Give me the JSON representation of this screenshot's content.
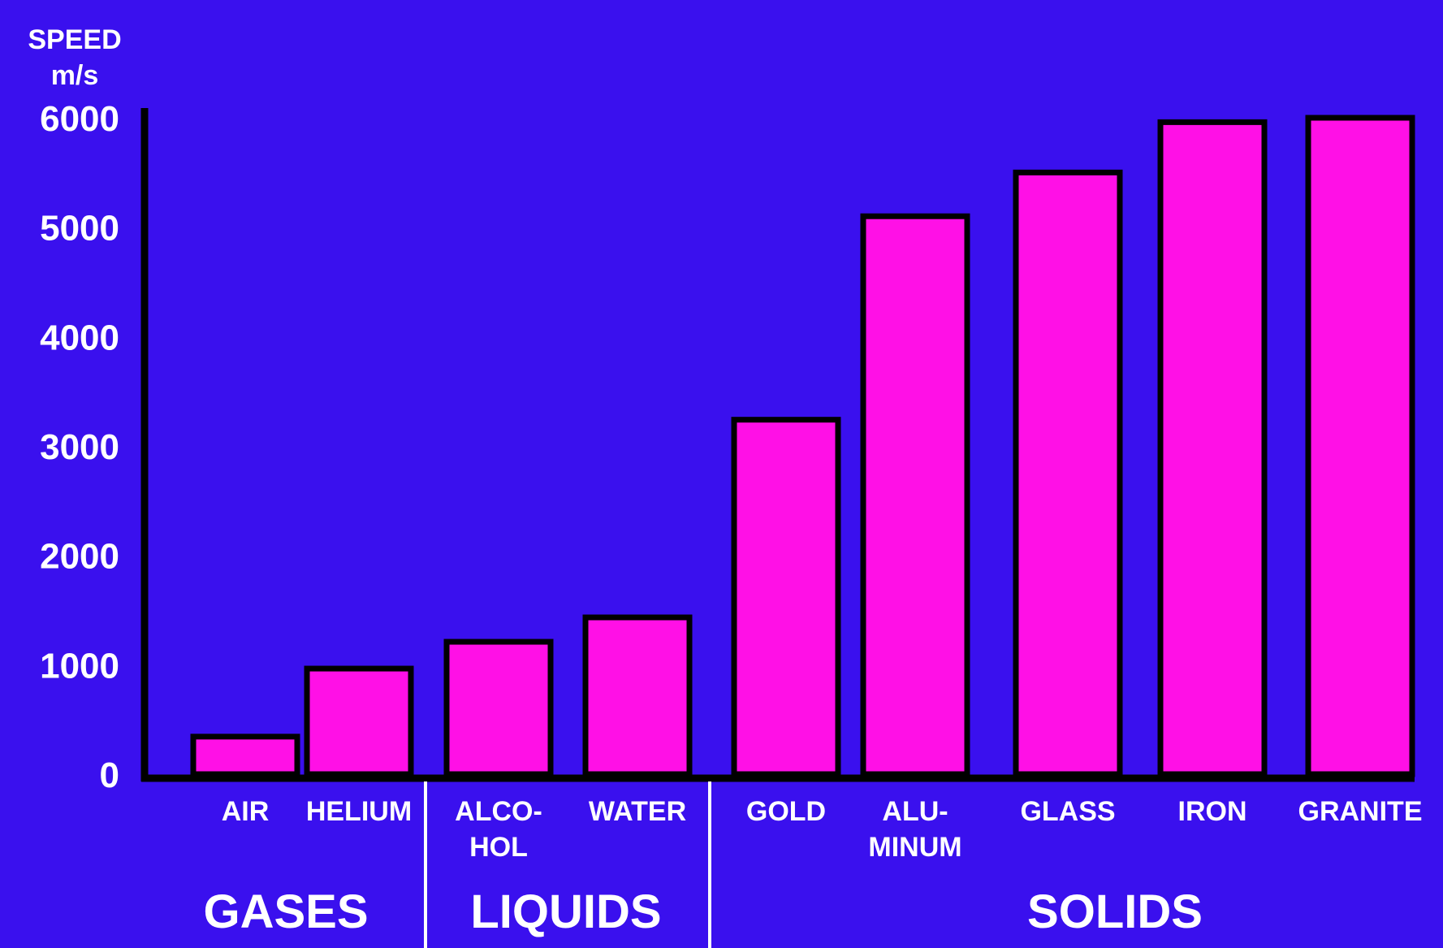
{
  "chart_data": {
    "type": "bar",
    "ylabel_lines": [
      "SPEED",
      "m/s"
    ],
    "yticks": [
      0,
      1000,
      2000,
      3000,
      4000,
      5000,
      6000
    ],
    "ylim": [
      0,
      6000
    ],
    "categories": [
      {
        "lines": [
          "AIR"
        ],
        "value": 343
      },
      {
        "lines": [
          "HELIUM"
        ],
        "value": 965
      },
      {
        "lines": [
          "ALCO-",
          "HOL"
        ],
        "value": 1210
      },
      {
        "lines": [
          "WATER"
        ],
        "value": 1433
      },
      {
        "lines": [
          "GOLD"
        ],
        "value": 3240
      },
      {
        "lines": [
          "ALU-",
          "MINUM"
        ],
        "value": 5100
      },
      {
        "lines": [
          "GLASS"
        ],
        "value": 5500
      },
      {
        "lines": [
          "IRON"
        ],
        "value": 5960
      },
      {
        "lines": [
          "GRANITE"
        ],
        "value": 6000
      }
    ],
    "groups": [
      {
        "label": "GASES",
        "count": 2
      },
      {
        "label": "LIQUIDS",
        "count": 2
      },
      {
        "label": "SOLIDS",
        "count": 5
      }
    ],
    "colors": {
      "background": "#3a10ee",
      "bar": "#ff10e6",
      "bar_outline": "#000000",
      "text": "#ffffff",
      "axis": "#000000",
      "divider": "#ffffff"
    }
  }
}
